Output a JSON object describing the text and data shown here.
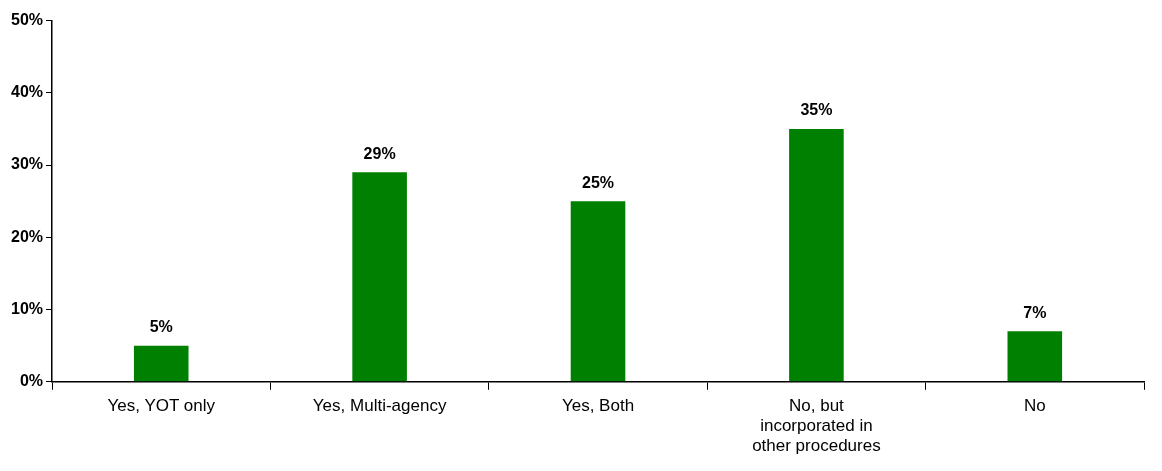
{
  "chart_data": {
    "type": "bar",
    "categories": [
      "Yes, YOT only",
      "Yes, Multi-agency",
      "Yes, Both",
      "No, but incorporated in other procedures",
      "No"
    ],
    "values": [
      5,
      29,
      25,
      35,
      7
    ],
    "color": "#008000",
    "ylim": [
      0,
      50
    ],
    "yticks": [
      {
        "value": 0,
        "label": "0%"
      },
      {
        "value": 10,
        "label": "10%"
      },
      {
        "value": 20,
        "label": "20%"
      },
      {
        "value": 30,
        "label": "30%"
      },
      {
        "value": 40,
        "label": "40%"
      },
      {
        "value": 50,
        "label": "50%"
      }
    ],
    "value_labels": [
      "5%",
      "29%",
      "25%",
      "35%",
      "7%"
    ],
    "grid": false,
    "legend": false
  }
}
